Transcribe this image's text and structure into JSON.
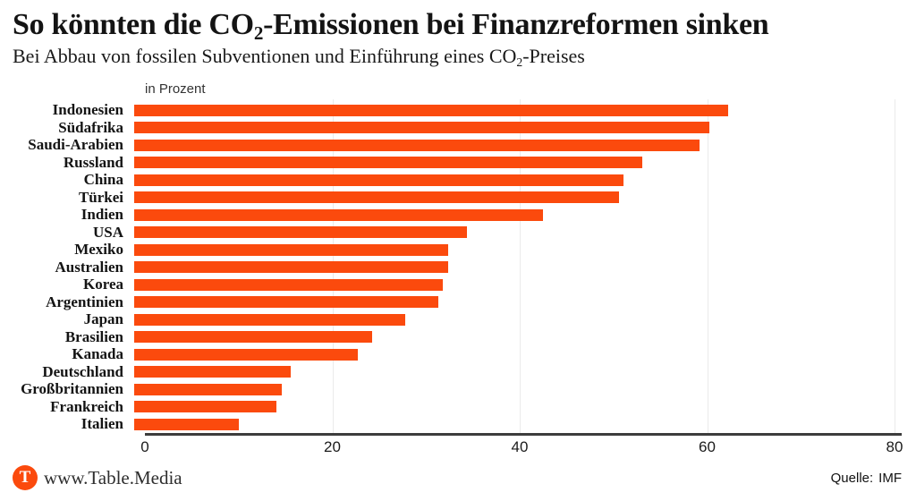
{
  "header": {
    "title_pre": "So könnten die CO",
    "title_sub": "2",
    "title_post": "-Emissionen bei Finanzreformen sinken",
    "subtitle_pre": "Bei Abbau von fossilen Subventionen und Einführung eines CO",
    "subtitle_sub": "2",
    "subtitle_post": "-Preises"
  },
  "chart": {
    "unit_label": "in Prozent"
  },
  "chart_data": {
    "type": "bar",
    "orientation": "horizontal",
    "title": "So könnten die CO2-Emissionen bei Finanzreformen sinken",
    "subtitle": "Bei Abbau von fossilen Subventionen und Einführung eines CO2-Preises",
    "unit": "in Prozent",
    "categories": [
      "Indonesien",
      "Südafrika",
      "Saudi-Arabien",
      "Russland",
      "China",
      "Türkei",
      "Indien",
      "USA",
      "Mexiko",
      "Australien",
      "Korea",
      "Argentinien",
      "Japan",
      "Brasilien",
      "Kanada",
      "Deutschland",
      "Großbritannien",
      "Frankreich",
      "Italien"
    ],
    "values": [
      62.5,
      60.5,
      59.5,
      53.5,
      51.5,
      51,
      43,
      35,
      33,
      33,
      32.5,
      32,
      28.5,
      25,
      23.5,
      16.5,
      15.5,
      15,
      11
    ],
    "xlim": [
      0,
      80
    ],
    "x_ticks": [
      0,
      20,
      40,
      60,
      80
    ],
    "grid": true,
    "legend": false
  },
  "footer": {
    "logo_letter": "T",
    "site": "www.Table.Media",
    "source_label": "Quelle:",
    "source_value": "IMF"
  },
  "colors": {
    "bar": "#fb4a0d",
    "axis": "#3d3d3d",
    "grid": "#ebebeb",
    "logo": "#fb4a0d"
  }
}
